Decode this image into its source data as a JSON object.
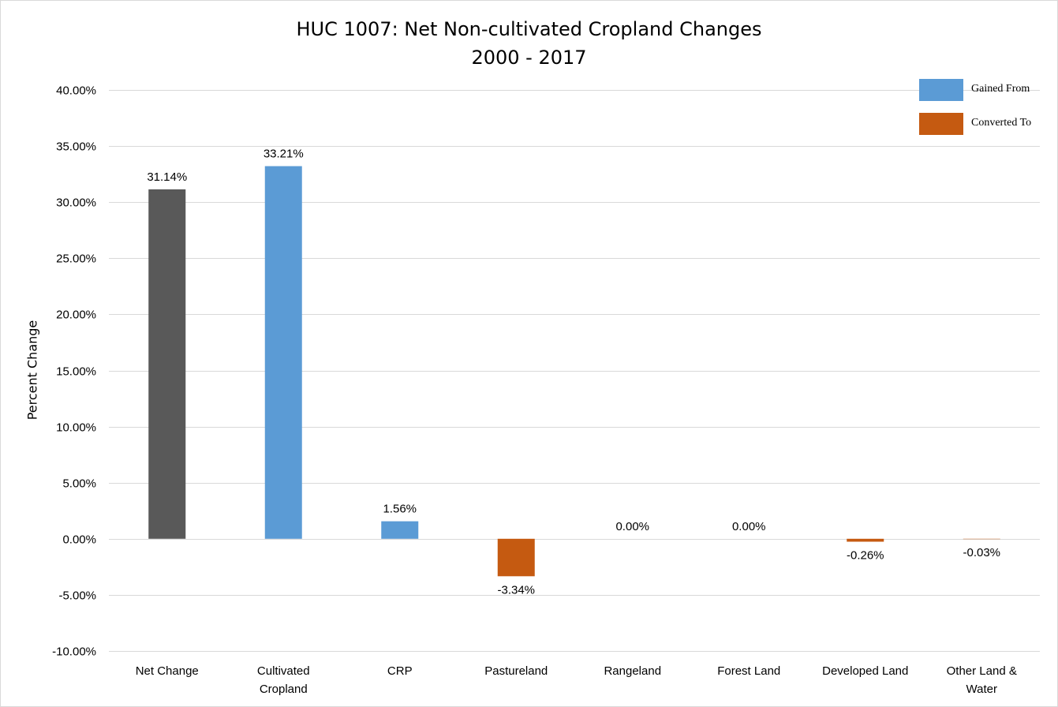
{
  "chart_data": {
    "type": "bar",
    "title": "HUC 1007: Net Non-cultivated Cropland Changes",
    "subtitle": "2000 - 2017",
    "xlabel": "",
    "ylabel": "Percent Change",
    "ylim": [
      -10,
      40
    ],
    "yticks": [
      -10,
      -5,
      0,
      5,
      10,
      15,
      20,
      25,
      30,
      35,
      40
    ],
    "ytick_labels": [
      "-10.00%",
      "-5.00%",
      "0.00%",
      "5.00%",
      "10.00%",
      "15.00%",
      "20.00%",
      "25.00%",
      "30.00%",
      "35.00%",
      "40.00%"
    ],
    "grid": true,
    "legend_position": "top-right",
    "categories": [
      [
        "Net Change"
      ],
      [
        "Cultivated",
        "Cropland"
      ],
      [
        "CRP"
      ],
      [
        "Pastureland"
      ],
      [
        "Rangeland"
      ],
      [
        "Forest Land"
      ],
      [
        "Developed Land"
      ],
      [
        "Other Land &",
        "Water"
      ]
    ],
    "values": [
      31.14,
      33.21,
      1.56,
      -3.34,
      0.0,
      0.0,
      -0.26,
      -0.03
    ],
    "data_labels": [
      "31.14%",
      "33.21%",
      "1.56%",
      "-3.34%",
      "0.00%",
      "0.00%",
      "-0.26%",
      "-0.03%"
    ],
    "bar_colors": [
      "#595959",
      "#5b9bd5",
      "#5b9bd5",
      "#c55a11",
      "#5b9bd5",
      "#5b9bd5",
      "#c55a11",
      "#c55a11"
    ],
    "legend": [
      {
        "label": "Gained From",
        "color": "#5b9bd5"
      },
      {
        "label": "Converted To",
        "color": "#c55a11"
      }
    ],
    "colors": {
      "net": "#595959",
      "gained": "#5b9bd5",
      "converted": "#c55a11",
      "grid": "#d9d9d9"
    }
  }
}
